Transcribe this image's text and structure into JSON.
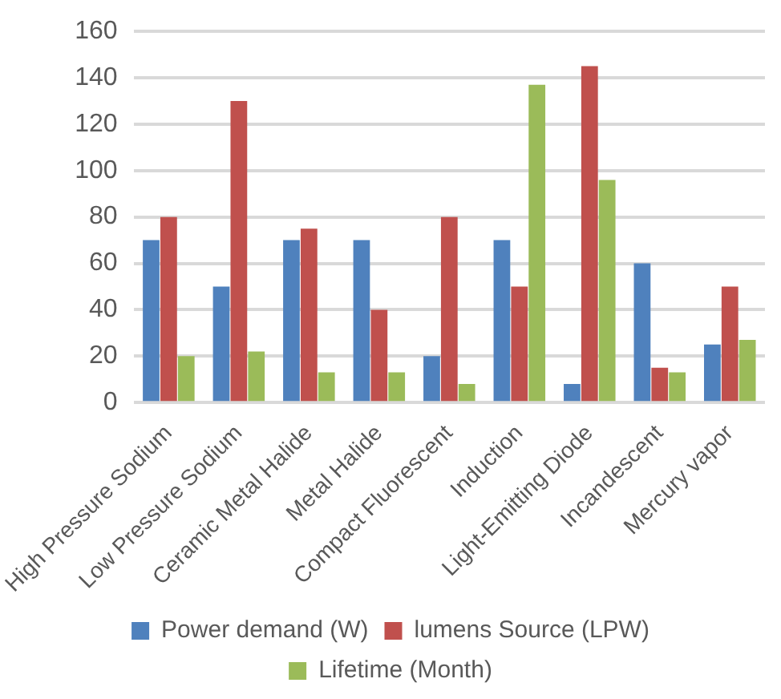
{
  "chart_data": {
    "type": "bar",
    "categories": [
      "High Pressure Sodium",
      "Low Pressure Sodium",
      "Ceramic Metal Halide",
      "Metal Halide",
      "Compact Fluorescent",
      "Induction",
      "Light-Emitting Diode",
      "Incandescent",
      "Mercury vapor"
    ],
    "series": [
      {
        "name": "Power demand (W)",
        "color": "#4f81bd",
        "values": [
          70,
          50,
          70,
          70,
          20,
          70,
          8,
          60,
          25
        ]
      },
      {
        "name": "lumens Source (LPW)",
        "color": "#c0504d",
        "values": [
          80,
          130,
          75,
          40,
          80,
          50,
          145,
          15,
          50
        ]
      },
      {
        "name": "Lifetime (Month)",
        "color": "#9bbb59",
        "values": [
          20,
          22,
          13,
          13,
          8,
          137,
          96,
          13,
          27
        ]
      }
    ],
    "ylim": [
      0,
      160
    ],
    "yticks": [
      0,
      20,
      40,
      60,
      80,
      100,
      120,
      140,
      160
    ],
    "grid": "y",
    "legend": "bottom"
  }
}
